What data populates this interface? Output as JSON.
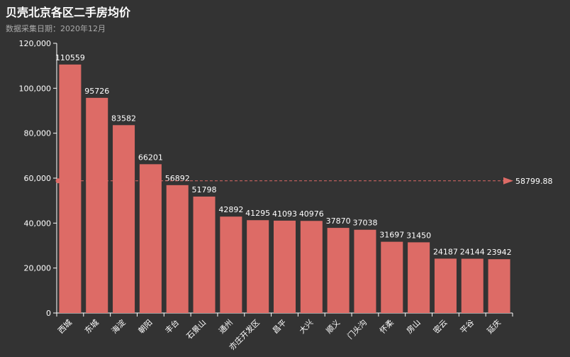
{
  "chart_data": {
    "type": "bar",
    "title": "贝壳北京各区二手房均价",
    "subtitle": "数据采集日期：2020年12月",
    "xlabel": "",
    "ylabel": "",
    "ylim": [
      0,
      120000
    ],
    "yticks": [
      0,
      20000,
      40000,
      60000,
      80000,
      100000,
      120000
    ],
    "ytick_labels": [
      "0",
      "20,000",
      "40,000",
      "60,000",
      "80,000",
      "100,000",
      "120,000"
    ],
    "categories": [
      "西城",
      "东城",
      "海淀",
      "朝阳",
      "丰台",
      "石景山",
      "通州",
      "亦庄开发区",
      "昌平",
      "大兴",
      "顺义",
      "门头沟",
      "怀柔",
      "房山",
      "密云",
      "平谷",
      "延庆"
    ],
    "values": [
      110559,
      95726,
      83582,
      66201,
      56892,
      51798,
      42892,
      41295,
      41093,
      40976,
      37870,
      37038,
      31697,
      31450,
      24187,
      24144,
      23942
    ],
    "average_line": {
      "value": 58799.88,
      "label": "58799.88"
    },
    "bar_color": "#dd6b66",
    "axis_color": "#ffffff",
    "grid": false
  }
}
